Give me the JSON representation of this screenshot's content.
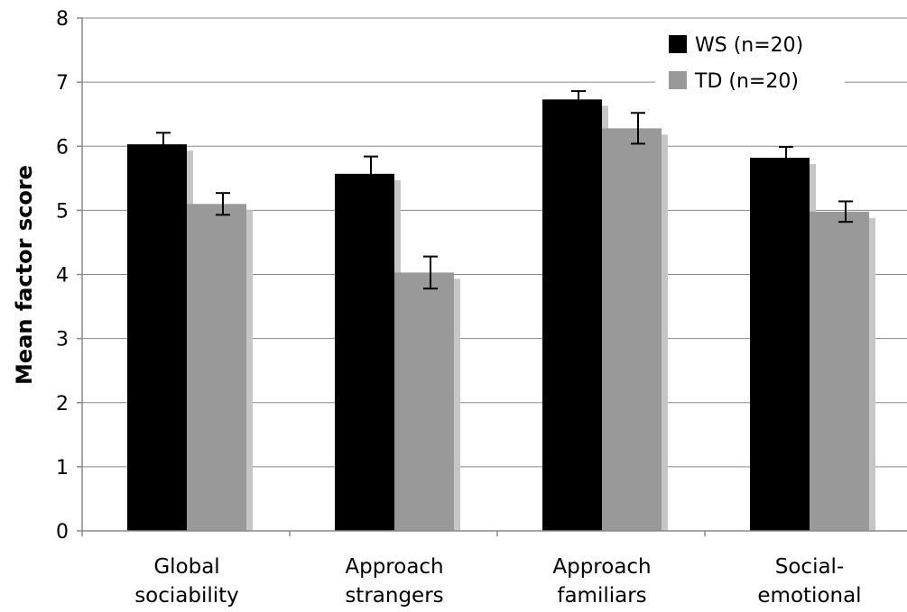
{
  "chart_data": {
    "type": "bar",
    "title": "",
    "xlabel": "",
    "ylabel": "Mean factor score",
    "ylim": [
      0,
      8
    ],
    "yticks": [
      "0",
      "1",
      "2",
      "3",
      "4",
      "5",
      "6",
      "7",
      "8"
    ],
    "grid": true,
    "legend_position": "top-right",
    "categories": [
      [
        "Global",
        "sociability"
      ],
      [
        "Approach",
        "strangers"
      ],
      [
        "Approach",
        "familiars"
      ],
      [
        "Social-",
        "emotional"
      ]
    ],
    "series": [
      {
        "name": "WS (n=20)",
        "color": "#000000",
        "values": [
          6.03,
          5.57,
          6.73,
          5.82
        ],
        "error": [
          0.18,
          0.27,
          0.13,
          0.17
        ]
      },
      {
        "name": "TD (n=20)",
        "color": "#999999",
        "values": [
          5.1,
          4.03,
          6.28,
          4.98
        ],
        "error": [
          0.17,
          0.25,
          0.24,
          0.16
        ]
      }
    ],
    "bar_shadow_color": "#c6c6c6",
    "gridline_color": "#888888"
  }
}
